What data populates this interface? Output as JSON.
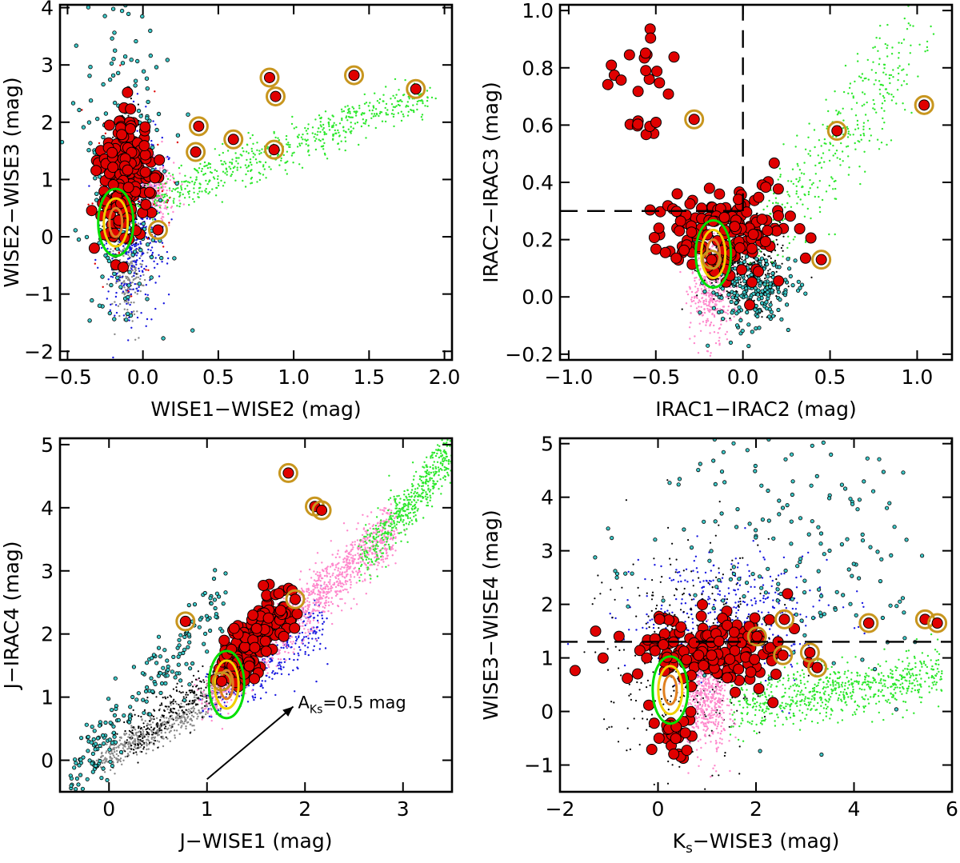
{
  "chart_data": [
    {
      "type": "scatter",
      "panel": "top-left",
      "xlabel": "WISE1−WISE2 (mag)",
      "ylabel": "WISE2−WISE3 (mag)",
      "xlim": [
        -0.55,
        2.05
      ],
      "ylim": [
        -2.15,
        4.05
      ],
      "xticks": [
        -0.5,
        0.0,
        0.5,
        1.0,
        1.5,
        2.0
      ],
      "xtick_labels": [
        "−0.5",
        "0.0",
        "0.5",
        "1.0",
        "1.5",
        "2.0"
      ],
      "yticks": [
        -2,
        -1,
        0,
        1,
        2,
        3,
        4
      ],
      "ytick_labels": [
        "−2",
        "−1",
        "0",
        "1",
        "2",
        "3",
        "4"
      ],
      "highlighted_points": [
        [
          0.84,
          2.78
        ],
        [
          0.88,
          2.45
        ],
        [
          1.4,
          2.82
        ],
        [
          1.81,
          2.58
        ],
        [
          0.37,
          1.93
        ],
        [
          0.6,
          1.7
        ],
        [
          0.87,
          1.52
        ],
        [
          0.35,
          1.48
        ],
        [
          0.1,
          0.12
        ]
      ],
      "ref_lines": [],
      "annotations": []
    },
    {
      "type": "scatter",
      "panel": "top-right",
      "xlabel": "IRAC1−IRAC2 (mag)",
      "ylabel": "IRAC2−IRAC3 (mag)",
      "xlim": [
        -1.05,
        1.2
      ],
      "ylim": [
        -0.22,
        1.02
      ],
      "xticks": [
        -1.0,
        -0.5,
        0.0,
        0.5,
        1.0
      ],
      "xtick_labels": [
        "−1.0",
        "−0.5",
        "0.0",
        "0.5",
        "1.0"
      ],
      "yticks": [
        -0.2,
        0.0,
        0.2,
        0.4,
        0.6,
        0.8,
        1.0
      ],
      "ytick_labels": [
        "−0.2",
        "0.0",
        "0.2",
        "0.4",
        "0.6",
        "0.8",
        "1.0"
      ],
      "highlighted_points": [
        [
          1.04,
          0.67
        ],
        [
          0.54,
          0.58
        ],
        [
          -0.28,
          0.62
        ],
        [
          0.45,
          0.13
        ],
        [
          -0.18,
          0.13
        ]
      ],
      "ref_lines": [
        {
          "orientation": "horizontal",
          "value": 0.3,
          "from": -1.05,
          "to": 0.0
        },
        {
          "orientation": "vertical",
          "value": 0.0,
          "from": 0.3,
          "to": 1.02
        }
      ],
      "annotations": []
    },
    {
      "type": "scatter",
      "panel": "bottom-left",
      "xlabel": "J−WISE1 (mag)",
      "ylabel": "J−IRAC4 (mag)",
      "xlim": [
        -0.5,
        3.5
      ],
      "ylim": [
        -0.5,
        5.1
      ],
      "xticks": [
        0,
        1,
        2,
        3
      ],
      "xtick_labels": [
        "0",
        "1",
        "2",
        "3"
      ],
      "yticks": [
        0,
        1,
        2,
        3,
        4,
        5
      ],
      "ytick_labels": [
        "0",
        "1",
        "2",
        "3",
        "4",
        "5"
      ],
      "highlighted_points": [
        [
          1.83,
          4.55
        ],
        [
          2.1,
          4.02
        ],
        [
          2.17,
          3.96
        ],
        [
          0.78,
          2.2
        ],
        [
          1.9,
          2.55
        ],
        [
          1.15,
          1.25
        ]
      ],
      "ref_lines": [],
      "annotations": [
        {
          "text": "Aₖₛ=0.5 mag",
          "label": "A",
          "sub": "Ks",
          "rest": "=0.5 mag",
          "arrow_from": [
            1.0,
            -0.3
          ],
          "arrow_to": [
            1.88,
            0.85
          ]
        }
      ]
    },
    {
      "type": "scatter",
      "panel": "bottom-right",
      "xlabel": "Ks−WISE3 (mag)",
      "xlabel_main": "K",
      "xlabel_sub": "s",
      "xlabel_rest": "−WISE3 (mag)",
      "ylabel": "WISE3−WISE4 (mag)",
      "xlim": [
        -2.0,
        6.0
      ],
      "ylim": [
        -1.5,
        5.1
      ],
      "xticks": [
        -2,
        0,
        2,
        4,
        6
      ],
      "xtick_labels": [
        "−2",
        "0",
        "2",
        "4",
        "6"
      ],
      "yticks": [
        -1,
        0,
        1,
        2,
        3,
        4,
        5
      ],
      "ytick_labels": [
        "−1",
        "0",
        "1",
        "2",
        "3",
        "4",
        "5"
      ],
      "highlighted_points": [
        [
          5.45,
          1.72
        ],
        [
          5.7,
          1.65
        ],
        [
          4.3,
          1.65
        ],
        [
          2.58,
          1.72
        ],
        [
          2.02,
          1.4
        ],
        [
          3.1,
          1.1
        ],
        [
          2.55,
          1.05
        ],
        [
          3.25,
          0.82
        ]
      ],
      "ref_lines": [
        {
          "orientation": "horizontal",
          "value": 1.3,
          "from": -2.0,
          "to": 6.0
        }
      ],
      "annotations": []
    }
  ],
  "colors": {
    "red_fill": "#e00000",
    "highlight_ring": "#c8961e",
    "teal": "#3cc8c8",
    "green": "#2ee82e",
    "blue": "#1818e0",
    "pink": "#ff88cc",
    "gray": "#888888",
    "contour_green": "#00e000",
    "contour_yellow": "#f0d000",
    "contour_orange": "#e08020"
  }
}
